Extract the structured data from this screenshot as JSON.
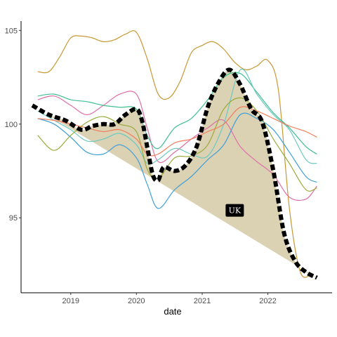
{
  "chart_data": {
    "type": "line",
    "title": "",
    "xlabel": "date",
    "ylabel": "",
    "x_ticks": [
      "2019",
      "2020",
      "2021",
      "2022"
    ],
    "y_ticks": [
      95,
      100,
      105
    ],
    "xlim": [
      "2018-06-01",
      "2022-12-01"
    ],
    "ylim": [
      91,
      105.5
    ],
    "grid": false,
    "legend": "none",
    "series": [
      {
        "color": "#c99733",
        "x": [
          "2018-07-01",
          "2018-09-01",
          "2018-11-01",
          "2019-01-01",
          "2019-03-01",
          "2019-05-01",
          "2019-07-01",
          "2019-09-01",
          "2019-11-01",
          "2020-01-01",
          "2020-03-01",
          "2020-05-01",
          "2020-07-01",
          "2020-09-01",
          "2020-11-01",
          "2021-01-01",
          "2021-03-01",
          "2021-05-01",
          "2021-07-01",
          "2021-09-01",
          "2021-11-01",
          "2022-01-01",
          "2022-03-01",
          "2022-05-01",
          "2022-07-01",
          "2022-09-01"
        ],
        "values": [
          102.8,
          102.8,
          103.6,
          104.6,
          104.7,
          104.6,
          104.4,
          104.5,
          104.8,
          104.9,
          103.5,
          101.6,
          101.4,
          102.3,
          103.8,
          104.2,
          104.4,
          104.0,
          103.3,
          102.9,
          103.1,
          103.4,
          101.8,
          95.5,
          92.1,
          92.0
        ]
      },
      {
        "color": "#e06fa8",
        "x": [
          "2018-07-01",
          "2018-10-01",
          "2019-01-01",
          "2019-04-01",
          "2019-07-01",
          "2019-10-01",
          "2020-01-01",
          "2020-03-01",
          "2020-05-01",
          "2020-08-01",
          "2020-11-01",
          "2021-02-01",
          "2021-05-01",
          "2021-08-01",
          "2021-11-01",
          "2022-02-01",
          "2022-05-01",
          "2022-08-01",
          "2022-10-01"
        ],
        "values": [
          101.3,
          101.5,
          101.0,
          100.5,
          101.0,
          101.6,
          101.6,
          99.8,
          98.0,
          98.5,
          99.2,
          99.8,
          100.2,
          98.8,
          98.0,
          97.3,
          96.1,
          96.0,
          96.7
        ]
      },
      {
        "color": "#3f9fd8",
        "x": [
          "2018-07-01",
          "2018-10-01",
          "2019-01-01",
          "2019-04-01",
          "2019-07-01",
          "2019-10-01",
          "2020-01-01",
          "2020-03-01",
          "2020-05-01",
          "2020-08-01",
          "2020-11-01",
          "2021-02-01",
          "2021-05-01",
          "2021-08-01",
          "2021-11-01",
          "2022-02-01",
          "2022-05-01",
          "2022-08-01",
          "2022-10-01"
        ],
        "values": [
          100.3,
          100.0,
          99.3,
          98.5,
          98.4,
          98.9,
          98.2,
          96.8,
          95.5,
          96.5,
          97.2,
          98.1,
          98.9,
          100.5,
          100.3,
          99.7,
          98.5,
          97.2,
          96.9
        ]
      },
      {
        "color": "#3ebf8f",
        "x": [
          "2018-07-01",
          "2018-10-01",
          "2019-01-01",
          "2019-04-01",
          "2019-07-01",
          "2019-10-01",
          "2020-01-01",
          "2020-03-01",
          "2020-05-01",
          "2020-08-01",
          "2020-11-01",
          "2021-02-01",
          "2021-05-01",
          "2021-08-01",
          "2021-11-01",
          "2022-02-01",
          "2022-05-01",
          "2022-08-01",
          "2022-10-01"
        ],
        "values": [
          101.5,
          101.6,
          101.3,
          101.2,
          101.0,
          100.9,
          100.8,
          99.4,
          98.7,
          99.8,
          100.3,
          101.3,
          102.5,
          102.7,
          101.7,
          100.6,
          99.8,
          98.8,
          98.4
        ]
      },
      {
        "color": "#6bc9c0",
        "x": [
          "2018-07-01",
          "2018-10-01",
          "2019-01-01",
          "2019-04-01",
          "2019-07-01",
          "2019-10-01",
          "2020-01-01",
          "2020-03-01",
          "2020-05-01",
          "2020-08-01",
          "2020-11-01",
          "2021-02-01",
          "2021-05-01",
          "2021-08-01",
          "2021-11-01",
          "2022-02-01",
          "2022-05-01",
          "2022-08-01",
          "2022-10-01"
        ],
        "values": [
          100.7,
          100.2,
          99.7,
          99.1,
          99.2,
          99.5,
          98.9,
          97.9,
          98.1,
          98.7,
          98.4,
          98.3,
          100.0,
          102.9,
          101.6,
          100.5,
          99.7,
          98.1,
          97.9
        ]
      },
      {
        "color": "#9aaa3a",
        "x": [
          "2018-07-01",
          "2018-10-01",
          "2019-01-01",
          "2019-04-01",
          "2019-07-01",
          "2019-10-01",
          "2020-01-01",
          "2020-03-01",
          "2020-05-01",
          "2020-08-01",
          "2020-11-01",
          "2021-02-01",
          "2021-05-01",
          "2021-08-01",
          "2021-11-01",
          "2022-02-01",
          "2022-05-01",
          "2022-08-01",
          "2022-10-01"
        ],
        "values": [
          99.4,
          98.6,
          99.4,
          100.1,
          100.4,
          100.0,
          99.6,
          97.6,
          97.1,
          98.2,
          98.3,
          98.9,
          100.8,
          101.4,
          100.7,
          99.2,
          97.9,
          96.5,
          96.6
        ]
      },
      {
        "color": "#f07d5a",
        "x": [
          "2018-07-01",
          "2018-10-01",
          "2019-01-01",
          "2019-04-01",
          "2019-07-01",
          "2019-10-01",
          "2020-01-01",
          "2020-03-01",
          "2020-05-01",
          "2020-08-01",
          "2020-11-01",
          "2021-02-01",
          "2021-05-01",
          "2021-08-01",
          "2021-11-01",
          "2022-02-01",
          "2022-05-01",
          "2022-08-01",
          "2022-10-01"
        ],
        "values": [
          100.3,
          100.2,
          100.0,
          99.8,
          99.6,
          99.7,
          99.2,
          98.4,
          98.4,
          99.0,
          99.2,
          99.6,
          100.0,
          100.9,
          100.7,
          100.3,
          99.9,
          99.6,
          99.3
        ]
      },
      {
        "name": "UK",
        "color": "#000000",
        "highlight": true,
        "x": [
          "2018-06-01",
          "2018-09-01",
          "2018-12-01",
          "2019-03-01",
          "2019-05-01",
          "2019-07-01",
          "2019-09-01",
          "2019-11-01",
          "2020-01-01",
          "2020-02-01",
          "2020-03-01",
          "2020-04-01",
          "2020-05-01",
          "2020-06-01",
          "2020-08-01",
          "2020-10-01",
          "2020-12-01",
          "2021-02-01",
          "2021-04-01",
          "2021-06-01",
          "2021-08-01",
          "2021-10-01",
          "2021-12-01",
          "2022-02-01",
          "2022-04-01",
          "2022-06-01",
          "2022-08-01",
          "2022-10-01"
        ],
        "values": [
          101.0,
          100.5,
          100.2,
          99.7,
          99.9,
          100.0,
          100.0,
          100.5,
          100.8,
          100.2,
          98.8,
          97.3,
          97.0,
          97.7,
          97.5,
          97.8,
          98.8,
          100.9,
          102.2,
          102.9,
          102.1,
          100.8,
          100.1,
          97.5,
          94.2,
          92.7,
          92.1,
          91.8
        ]
      }
    ],
    "annotations": [
      {
        "text": "UK",
        "x": "2021-07-01",
        "y": 95.4
      }
    ],
    "shaded_region": {
      "color": "#c8b88a",
      "description": "between UK series and straight trend line from 2018-06 to 2022-10"
    }
  }
}
